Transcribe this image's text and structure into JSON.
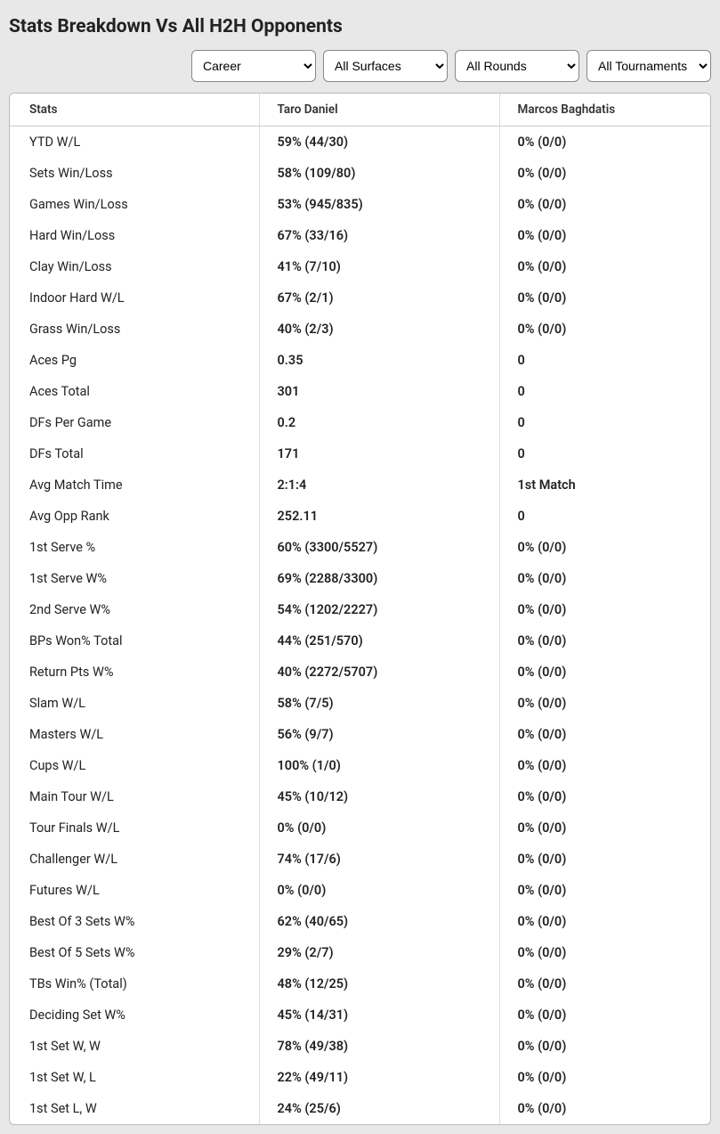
{
  "title": "Stats Breakdown Vs All H2H Opponents",
  "filters": {
    "period": {
      "selected": "Career",
      "options": [
        "Career"
      ]
    },
    "surface": {
      "selected": "All Surfaces",
      "options": [
        "All Surfaces"
      ]
    },
    "round": {
      "selected": "All Rounds",
      "options": [
        "All Rounds"
      ]
    },
    "tournament": {
      "selected": "All Tournaments",
      "options": [
        "All Tournaments"
      ]
    }
  },
  "table": {
    "columns": [
      "Stats",
      "Taro Daniel",
      "Marcos Baghdatis"
    ],
    "rows": [
      [
        "YTD W/L",
        "59% (44/30)",
        "0% (0/0)"
      ],
      [
        "Sets Win/Loss",
        "58% (109/80)",
        "0% (0/0)"
      ],
      [
        "Games Win/Loss",
        "53% (945/835)",
        "0% (0/0)"
      ],
      [
        "Hard Win/Loss",
        "67% (33/16)",
        "0% (0/0)"
      ],
      [
        "Clay Win/Loss",
        "41% (7/10)",
        "0% (0/0)"
      ],
      [
        "Indoor Hard W/L",
        "67% (2/1)",
        "0% (0/0)"
      ],
      [
        "Grass Win/Loss",
        "40% (2/3)",
        "0% (0/0)"
      ],
      [
        "Aces Pg",
        "0.35",
        "0"
      ],
      [
        "Aces Total",
        "301",
        "0"
      ],
      [
        "DFs Per Game",
        "0.2",
        "0"
      ],
      [
        "DFs Total",
        "171",
        "0"
      ],
      [
        "Avg Match Time",
        "2:1:4",
        "1st Match"
      ],
      [
        "Avg Opp Rank",
        "252.11",
        "0"
      ],
      [
        "1st Serve %",
        "60% (3300/5527)",
        "0% (0/0)"
      ],
      [
        "1st Serve W%",
        "69% (2288/3300)",
        "0% (0/0)"
      ],
      [
        "2nd Serve W%",
        "54% (1202/2227)",
        "0% (0/0)"
      ],
      [
        "BPs Won% Total",
        "44% (251/570)",
        "0% (0/0)"
      ],
      [
        "Return Pts W%",
        "40% (2272/5707)",
        "0% (0/0)"
      ],
      [
        "Slam W/L",
        "58% (7/5)",
        "0% (0/0)"
      ],
      [
        "Masters W/L",
        "56% (9/7)",
        "0% (0/0)"
      ],
      [
        "Cups W/L",
        "100% (1/0)",
        "0% (0/0)"
      ],
      [
        "Main Tour W/L",
        "45% (10/12)",
        "0% (0/0)"
      ],
      [
        "Tour Finals W/L",
        "0% (0/0)",
        "0% (0/0)"
      ],
      [
        "Challenger W/L",
        "74% (17/6)",
        "0% (0/0)"
      ],
      [
        "Futures W/L",
        "0% (0/0)",
        "0% (0/0)"
      ],
      [
        "Best Of 3 Sets W%",
        "62% (40/65)",
        "0% (0/0)"
      ],
      [
        "Best Of 5 Sets W%",
        "29% (2/7)",
        "0% (0/0)"
      ],
      [
        "TBs Win% (Total)",
        "48% (12/25)",
        "0% (0/0)"
      ],
      [
        "Deciding Set W%",
        "45% (14/31)",
        "0% (0/0)"
      ],
      [
        "1st Set W, W",
        "78% (49/38)",
        "0% (0/0)"
      ],
      [
        "1st Set W, L",
        "22% (49/11)",
        "0% (0/0)"
      ],
      [
        "1st Set L, W",
        "24% (25/6)",
        "0% (0/0)"
      ]
    ]
  }
}
